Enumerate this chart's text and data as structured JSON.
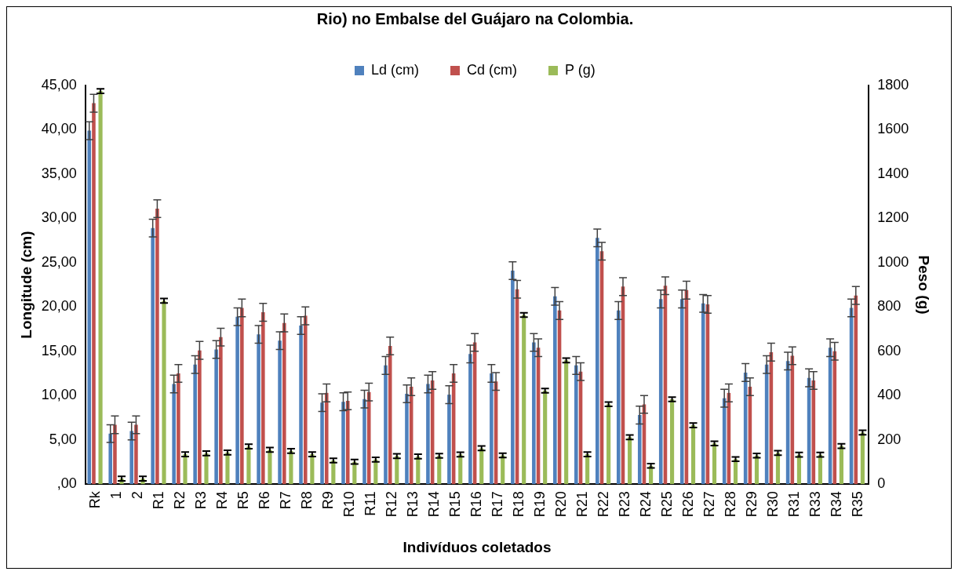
{
  "chart_data": {
    "type": "bar",
    "title": "Rio) no Embalse del Guájaro na Colombia.",
    "xlabel": "Indivíduos coletados",
    "ylabel": "Longitude (cm)",
    "y2label": "Peso (g)",
    "categories": [
      "Rk",
      "1",
      "2",
      "R1",
      "R2",
      "R3",
      "R4",
      "R5",
      "R6",
      "R7",
      "R8",
      "R9",
      "R10",
      "R11",
      "R12",
      "R13",
      "R14",
      "R15",
      "R16",
      "R17",
      "R18",
      "R19",
      "R20",
      "R21",
      "R22",
      "R23",
      "R24",
      "R25",
      "R26",
      "R27",
      "R28",
      "R29",
      "R30",
      "R31",
      "R33",
      "R34",
      "R35"
    ],
    "series": [
      {
        "name": "Ld (cm)",
        "color": "#4f81bd",
        "values": [
          39.9,
          5.7,
          6.0,
          28.9,
          11.3,
          13.5,
          15.2,
          18.9,
          16.9,
          16.2,
          17.9,
          9.2,
          9.3,
          9.6,
          13.4,
          10.2,
          11.3,
          10.1,
          14.7,
          12.5,
          24.1,
          16.0,
          21.2,
          13.4,
          27.8,
          19.6,
          7.8,
          20.9,
          20.9,
          20.4,
          9.7,
          12.6,
          13.5,
          13.9,
          12.0,
          15.4,
          19.9
        ],
        "errors": [
          1,
          1,
          1,
          1,
          1,
          1,
          1,
          1,
          1,
          1,
          1,
          1,
          1,
          1,
          1,
          1,
          1,
          1,
          1,
          1,
          1,
          1,
          1,
          1,
          1,
          1,
          1,
          1,
          1,
          1,
          1,
          1,
          1,
          1,
          1,
          1,
          1
        ]
      },
      {
        "name": "Cd (cm)",
        "color": "#c0504d",
        "values": [
          43.0,
          6.7,
          6.7,
          31.1,
          12.5,
          15.1,
          16.6,
          19.9,
          19.4,
          18.2,
          19.0,
          10.3,
          9.4,
          10.4,
          15.6,
          11.0,
          11.7,
          12.5,
          16.0,
          11.6,
          22.0,
          15.4,
          19.6,
          12.7,
          26.3,
          22.3,
          9.0,
          22.4,
          21.9,
          20.3,
          10.3,
          11.0,
          14.9,
          14.5,
          11.7,
          15.0,
          21.3
        ],
        "errors": [
          1,
          1,
          1,
          1,
          1,
          1,
          1,
          1,
          1,
          1,
          1,
          1,
          1,
          1,
          1,
          1,
          1,
          1,
          1,
          1,
          1,
          1,
          1,
          1,
          1,
          1,
          1,
          1,
          1,
          1,
          1,
          1,
          1,
          1,
          1,
          1,
          1
        ]
      },
      {
        "name": "P (g)",
        "color": "#9bbb59",
        "axis": "y2",
        "values": [
          1775,
          25,
          25,
          828,
          135,
          139,
          143,
          170,
          155,
          150,
          135,
          107,
          101,
          111,
          127,
          125,
          128,
          134,
          162,
          130,
          764,
          422,
          559,
          135,
          361,
          212,
          83,
          383,
          266,
          184,
          113,
          129,
          141,
          133,
          133,
          172,
          233
        ],
        "errors": [
          10,
          10,
          10,
          10,
          10,
          10,
          10,
          10,
          10,
          10,
          10,
          10,
          10,
          10,
          10,
          10,
          10,
          10,
          10,
          10,
          10,
          10,
          10,
          10,
          10,
          10,
          10,
          10,
          10,
          10,
          10,
          10,
          10,
          10,
          10,
          10,
          10
        ]
      }
    ],
    "ylim": [
      0,
      45
    ],
    "yticks": [
      {
        "value": 0,
        "label": ",00"
      },
      {
        "value": 5,
        "label": "5,00"
      },
      {
        "value": 10,
        "label": "10,00"
      },
      {
        "value": 15,
        "label": "15,00"
      },
      {
        "value": 20,
        "label": "20,00"
      },
      {
        "value": 25,
        "label": "25,00"
      },
      {
        "value": 30,
        "label": "30,00"
      },
      {
        "value": 35,
        "label": "35,00"
      },
      {
        "value": 40,
        "label": "40,00"
      },
      {
        "value": 45,
        "label": "45,00"
      }
    ],
    "y2lim": [
      0,
      1800
    ],
    "y2ticks": [
      0,
      200,
      400,
      600,
      800,
      1000,
      1200,
      1400,
      1600,
      1800
    ],
    "legend": "top",
    "grid": false
  }
}
